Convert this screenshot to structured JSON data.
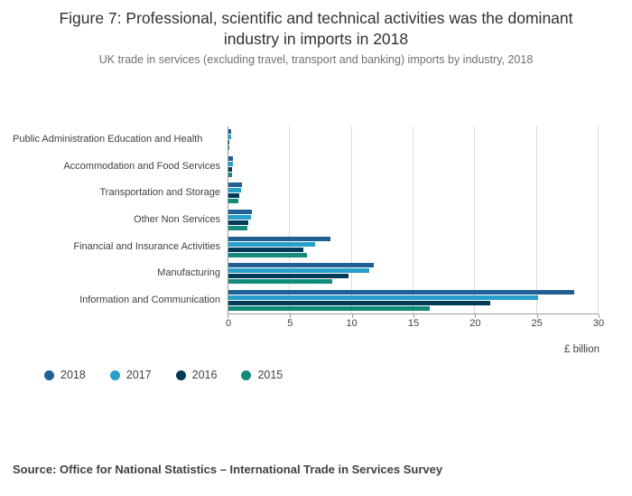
{
  "figure": {
    "title": "Figure 7: Professional, scientific and technical activities was the dominant industry in imports in 2018",
    "subtitle": "UK trade in services (excluding travel, transport and banking) imports by industry, 2018",
    "source": "Source: Office for National Statistics – International Trade in Services Survey"
  },
  "chart_data": {
    "type": "bar",
    "orientation": "horizontal",
    "title": "Figure 7: Professional, scientific and technical activities was the dominant industry in imports in 2018",
    "subtitle": "UK trade in services (excluding travel, transport and banking) imports by industry, 2018",
    "categories": [
      "Public Administration Education and Health",
      "Accommodation and Food Services",
      "Transportation and Storage",
      "Other Non Services",
      "Financial and Insurance Activities",
      "Manufacturing",
      "Information and Communication"
    ],
    "series": [
      {
        "name": "2018",
        "color": "#206095",
        "values": [
          0.2,
          0.4,
          1.1,
          1.9,
          8.3,
          11.8,
          28.0
        ]
      },
      {
        "name": "2017",
        "color": "#27a0cc",
        "values": [
          0.2,
          0.4,
          1.0,
          1.8,
          7.0,
          11.4,
          25.1
        ]
      },
      {
        "name": "2016",
        "color": "#003c57",
        "values": [
          0.1,
          0.3,
          0.9,
          1.6,
          6.1,
          9.7,
          21.2
        ]
      },
      {
        "name": "2015",
        "color": "#118c7b",
        "values": [
          0.1,
          0.3,
          0.8,
          1.5,
          6.4,
          8.4,
          16.3
        ]
      }
    ],
    "xlabel": "£ billion",
    "ylabel": "",
    "xlim": [
      0,
      30
    ],
    "xticks": [
      0,
      5,
      10,
      15,
      20,
      25,
      30
    ],
    "grid": true,
    "legend_position": "bottom-left"
  }
}
